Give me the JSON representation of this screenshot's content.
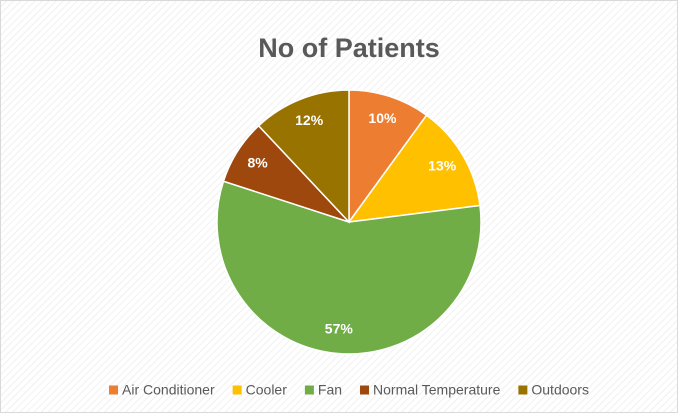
{
  "chart_data": {
    "type": "pie",
    "title": "No of Patients",
    "categories": [
      "Air Conditioner",
      "Cooler",
      "Fan",
      "Normal Temperature",
      "Outdoors"
    ],
    "values": [
      10,
      13,
      57,
      8,
      12
    ],
    "value_labels": [
      "10%",
      "13%",
      "57%",
      "8%",
      "12%"
    ],
    "colors": [
      "#ed7d31",
      "#ffc000",
      "#70ad47",
      "#9e480e",
      "#997300"
    ],
    "legend": "bottom"
  }
}
